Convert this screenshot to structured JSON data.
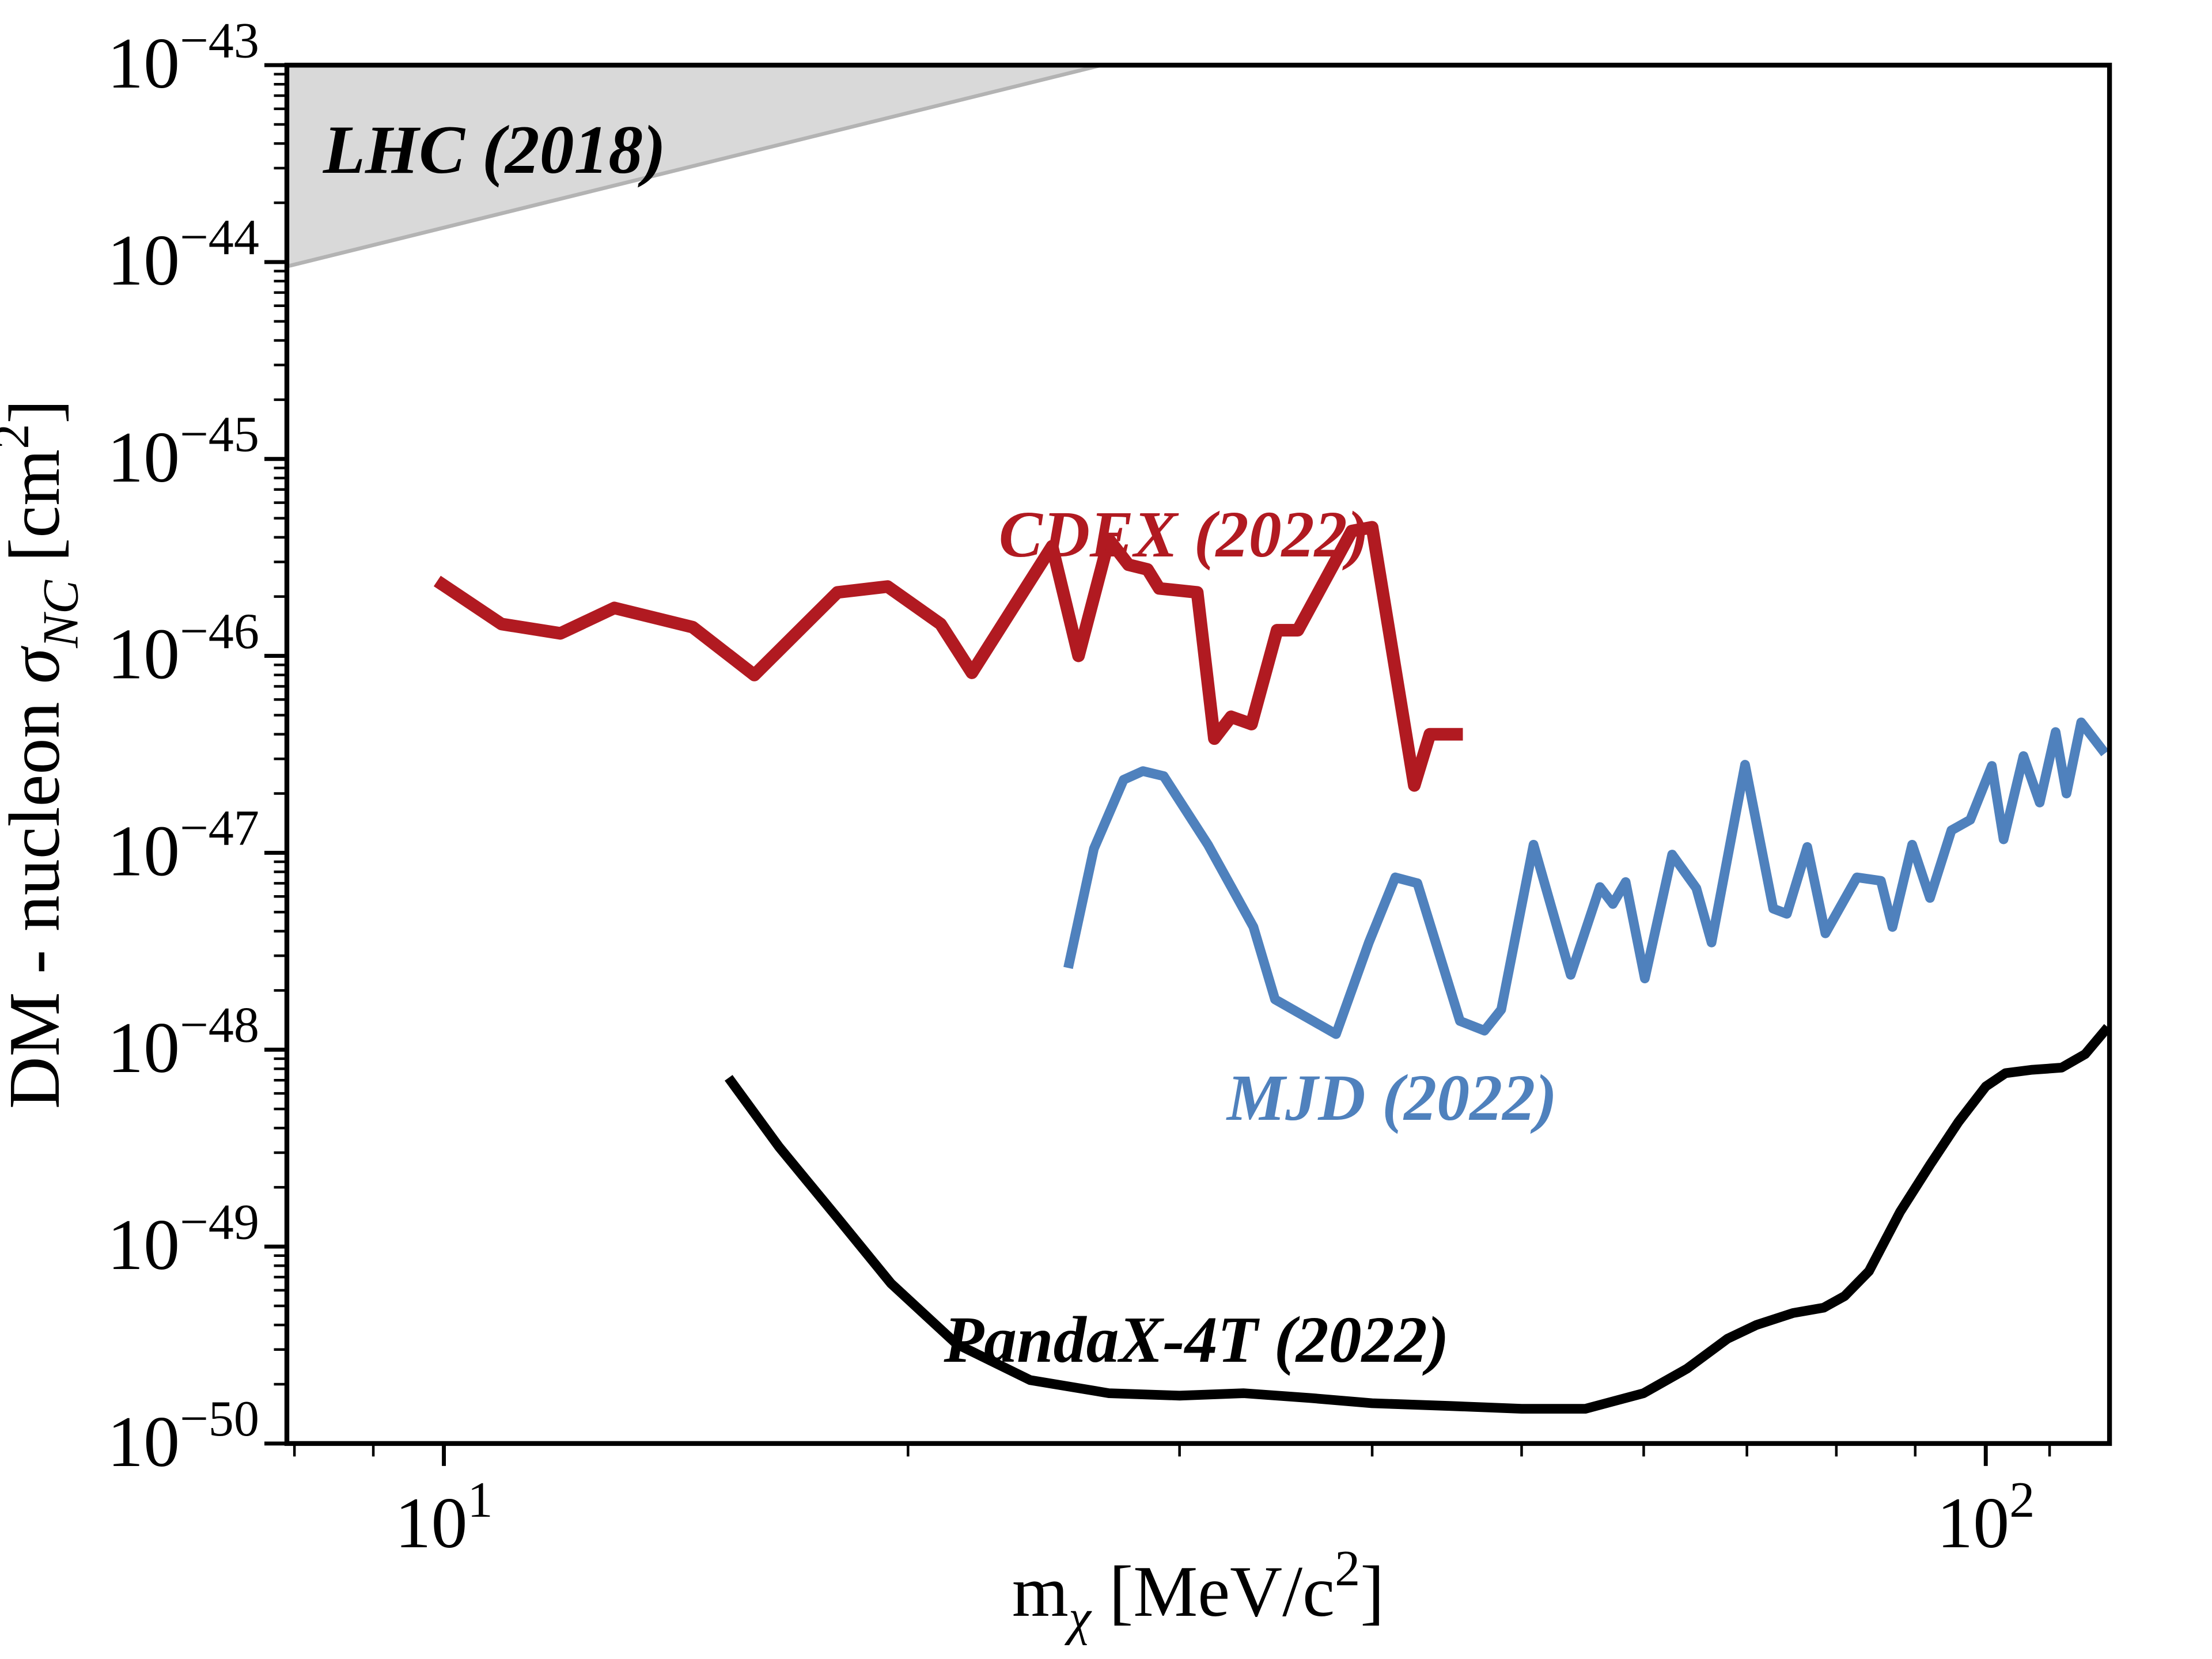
{
  "page": {
    "background": "#ffffff"
  },
  "chart_data": {
    "type": "line",
    "title": "",
    "xlabel": "m_chi [MeV/c^2]",
    "ylabel": "DM - nucleon sigma_NC [cm^2]",
    "xlabel_parts": [
      {
        "t": "m"
      },
      {
        "t": "χ",
        "sub": true,
        "italic": true
      },
      {
        "t": " [MeV/c"
      },
      {
        "t": "2",
        "sup": true
      },
      {
        "t": "]"
      }
    ],
    "ylabel_parts": [
      {
        "t": "DM - nucleon "
      },
      {
        "t": "σ",
        "italic": true
      },
      {
        "t": "NC",
        "sub": true,
        "italic": true
      },
      {
        "t": " [cm"
      },
      {
        "t": "2",
        "sup": true
      },
      {
        "t": "]"
      }
    ],
    "x_axis": {
      "scale": "log",
      "range": [
        7.91,
        120.3
      ],
      "major_ticks": [
        {
          "value": 10,
          "base": "10",
          "exp": "1"
        },
        {
          "value": 100,
          "base": "10",
          "exp": "2"
        }
      ],
      "minor_ticks": [
        8,
        9,
        20,
        30,
        40,
        50,
        60,
        70,
        80,
        90,
        110
      ]
    },
    "y_axis": {
      "scale": "log",
      "range": [
        1e-50,
        1e-43
      ],
      "major_ticks": [
        {
          "value": 1e-43,
          "base": "10",
          "exp": "−43"
        },
        {
          "value": 1e-44,
          "base": "10",
          "exp": "−44"
        },
        {
          "value": 1e-45,
          "base": "10",
          "exp": "−45"
        },
        {
          "value": 1e-46,
          "base": "10",
          "exp": "−46"
        },
        {
          "value": 1e-47,
          "base": "10",
          "exp": "−47"
        },
        {
          "value": 1e-48,
          "base": "10",
          "exp": "−48"
        },
        {
          "value": 1e-49,
          "base": "10",
          "exp": "−49"
        },
        {
          "value": 1e-50,
          "base": "10",
          "exp": "−50"
        }
      ],
      "minor_ticks_policy": "2-9 per decade"
    },
    "grid": "off",
    "legend": "none (inline colored labels)",
    "regions": [
      {
        "id": "lhc",
        "label": "LHC (2018)",
        "fill": "#d9d9d9",
        "edge": "#b3b3b3",
        "fill_to": "top",
        "boundary": [
          [
            7.91,
            9.5e-45
          ],
          [
            26.7,
            1e-43
          ]
        ]
      }
    ],
    "series": [
      {
        "id": "cdex",
        "label": "CDEX (2022)",
        "color": "#b11a21",
        "points": [
          [
            9.9,
            2.4e-46
          ],
          [
            10.9,
            1.45e-46
          ],
          [
            11.9,
            1.3e-46
          ],
          [
            12.9,
            1.75e-46
          ],
          [
            14.5,
            1.4e-46
          ],
          [
            15.9,
            8e-47
          ],
          [
            18.0,
            2.1e-46
          ],
          [
            19.4,
            2.25e-46
          ],
          [
            21.0,
            1.45e-46
          ],
          [
            22.0,
            8.2e-47
          ],
          [
            24.8,
            3.6e-46
          ],
          [
            25.8,
            1e-46
          ],
          [
            27.0,
            3.9e-46
          ],
          [
            27.8,
            2.9e-46
          ],
          [
            28.6,
            2.75e-46
          ],
          [
            29.1,
            2.2e-46
          ],
          [
            30.8,
            2.1e-46
          ],
          [
            31.6,
            3.8e-47
          ],
          [
            32.4,
            4.9e-47
          ],
          [
            33.4,
            4.5e-47
          ],
          [
            34.7,
            1.35e-46
          ],
          [
            35.8,
            1.35e-46
          ],
          [
            38.8,
            4.3e-46
          ],
          [
            40.0,
            4.5e-46
          ],
          [
            42.6,
            2.2e-47
          ],
          [
            43.6,
            4e-47
          ],
          [
            45.8,
            4e-47
          ]
        ]
      },
      {
        "id": "mjd",
        "label": "MJD (2022)",
        "color": "#4f81bd",
        "points": [
          [
            25.4,
            2.6e-48
          ],
          [
            26.4,
            1.05e-47
          ],
          [
            27.6,
            2.35e-47
          ],
          [
            28.4,
            2.6e-47
          ],
          [
            29.3,
            2.45e-47
          ],
          [
            31.3,
            1.1e-47
          ],
          [
            33.5,
            4.2e-48
          ],
          [
            34.6,
            1.8e-48
          ],
          [
            37.9,
            1.2e-48
          ],
          [
            39.8,
            3.5e-48
          ],
          [
            41.4,
            7.5e-48
          ],
          [
            42.8,
            7e-48
          ],
          [
            45.6,
            1.4e-48
          ],
          [
            47.3,
            1.25e-48
          ],
          [
            48.5,
            1.6e-48
          ],
          [
            50.9,
            1.1e-47
          ],
          [
            53.8,
            2.4e-48
          ],
          [
            56.2,
            6.7e-48
          ],
          [
            57.3,
            5.5e-48
          ],
          [
            58.4,
            7.1e-48
          ],
          [
            60.1,
            2.3e-48
          ],
          [
            62.6,
            9.8e-48
          ],
          [
            64.9,
            6.6e-48
          ],
          [
            66.4,
            3.5e-48
          ],
          [
            69.8,
            2.8e-47
          ],
          [
            72.8,
            5.2e-48
          ],
          [
            74.3,
            4.9e-48
          ],
          [
            76.6,
            1.07e-47
          ],
          [
            78.7,
            3.9e-48
          ],
          [
            82.5,
            7.5e-48
          ],
          [
            85.5,
            7.2e-48
          ],
          [
            87.0,
            4.2e-48
          ],
          [
            89.6,
            1.1e-47
          ],
          [
            92.0,
            5.9e-48
          ],
          [
            95.0,
            1.3e-47
          ],
          [
            97.7,
            1.47e-47
          ],
          [
            100.9,
            2.76e-47
          ],
          [
            102.7,
            1.17e-47
          ],
          [
            105.8,
            3.1e-47
          ],
          [
            108.4,
            1.8e-47
          ],
          [
            111.0,
            4.1e-47
          ],
          [
            112.8,
            2e-47
          ],
          [
            115.3,
            4.6e-47
          ],
          [
            119.5,
            3.2e-47
          ]
        ]
      },
      {
        "id": "pandax",
        "label": "PandaX-4T (2022)",
        "color": "#000000",
        "points": [
          [
            15.3,
            7.2e-49
          ],
          [
            16.5,
            3.2e-49
          ],
          [
            18.0,
            1.4e-49
          ],
          [
            19.5,
            6.5e-50
          ],
          [
            21.5,
            3.2e-50
          ],
          [
            24.0,
            2.1e-50
          ],
          [
            27.0,
            1.8e-50
          ],
          [
            30.0,
            1.75e-50
          ],
          [
            33.0,
            1.8e-50
          ],
          [
            36.5,
            1.7e-50
          ],
          [
            40.0,
            1.6e-50
          ],
          [
            45.0,
            1.55e-50
          ],
          [
            50.0,
            1.5e-50
          ],
          [
            55.0,
            1.5e-50
          ],
          [
            60.0,
            1.8e-50
          ],
          [
            64.0,
            2.4e-50
          ],
          [
            68.0,
            3.4e-50
          ],
          [
            71.0,
            4e-50
          ],
          [
            75.0,
            4.6e-50
          ],
          [
            78.5,
            4.9e-50
          ],
          [
            81.0,
            5.6e-50
          ],
          [
            84.0,
            7.5e-50
          ],
          [
            88.0,
            1.5e-49
          ],
          [
            92.0,
            2.6e-49
          ],
          [
            96.0,
            4.3e-49
          ],
          [
            100.0,
            6.5e-49
          ],
          [
            103.0,
            7.6e-49
          ],
          [
            107.0,
            7.9e-49
          ],
          [
            112.0,
            8.1e-49
          ],
          [
            116.0,
            9.5e-49
          ],
          [
            120.0,
            1.3e-48
          ]
        ]
      }
    ],
    "annotations": [
      {
        "id": "lhc-label",
        "text": "LHC (2018)",
        "color": "#000000",
        "x": 8.35,
        "y": 2.84e-44,
        "font_scale": 1.05
      },
      {
        "id": "cdex-label",
        "text": "CDEX (2022)",
        "color": "#b11a21",
        "x": 22.9,
        "y": 3.2e-46,
        "font_scale": 1.0
      },
      {
        "id": "mjd-label",
        "text": "MJD (2022)",
        "color": "#4f81bd",
        "x": 32.2,
        "y": 4.4e-49,
        "font_scale": 1.0
      },
      {
        "id": "pandax-label",
        "text": "PandaX-4T (2022)",
        "color": "#000000",
        "x": 21.1,
        "y": 2.6e-50,
        "font_scale": 1.0
      }
    ]
  }
}
